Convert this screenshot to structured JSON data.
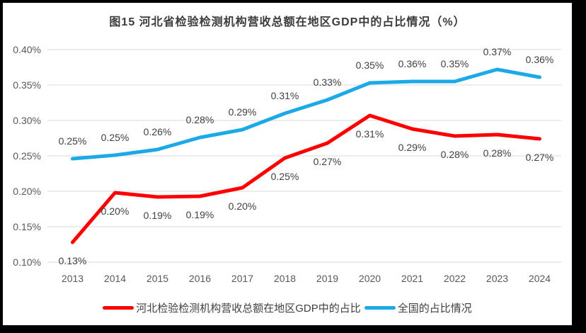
{
  "frame": {
    "border_color": "#000000",
    "background": "#FFFFFF"
  },
  "chart_data": {
    "type": "line",
    "title": "图15 河北省检验检测机构营收总额在地区GDP中的占比情况（%）",
    "categories": [
      "2013",
      "2014",
      "2015",
      "2016",
      "2017",
      "2018",
      "2019",
      "2020",
      "2021",
      "2022",
      "2023",
      "2024"
    ],
    "xlabel": "",
    "ylabel": "",
    "y_ticks": [
      "0.40%",
      "0.35%",
      "0.30%",
      "0.25%",
      "0.20%",
      "0.15%",
      "0.10%"
    ],
    "ylim_percent": [
      0.1,
      0.4
    ],
    "grid": true,
    "gridline_color": "#d9d9d9",
    "legend_position": "bottom",
    "series": [
      {
        "name": "河北检验检测机构营收总额在地区GDP中的占比",
        "color": "#fe0000",
        "label_side": "below",
        "values_percent": [
          0.13,
          0.2,
          0.19,
          0.19,
          0.2,
          0.25,
          0.27,
          0.31,
          0.29,
          0.28,
          0.28,
          0.27
        ],
        "point_labels": [
          "0.13%",
          "0.20%",
          "0.19%",
          "0.19%",
          "0.20%",
          "0.25%",
          "0.27%",
          "0.31%",
          "0.29%",
          "0.28%",
          "0.28%",
          "0.27%"
        ],
        "plot_values_percent": [
          0.128,
          0.198,
          0.192,
          0.193,
          0.205,
          0.247,
          0.268,
          0.307,
          0.288,
          0.278,
          0.28,
          0.274
        ]
      },
      {
        "name": "全国的占比情况",
        "color": "#1ba9e8",
        "label_side": "above",
        "values_percent": [
          0.25,
          0.25,
          0.26,
          0.28,
          0.29,
          0.31,
          0.33,
          0.35,
          0.36,
          0.35,
          0.37,
          0.36
        ],
        "point_labels": [
          "0.25%",
          "0.25%",
          "0.26%",
          "0.28%",
          "0.29%",
          "0.31%",
          "0.33%",
          "0.35%",
          "0.36%",
          "0.35%",
          "0.37%",
          "0.36%"
        ],
        "plot_values_percent": [
          0.246,
          0.251,
          0.259,
          0.276,
          0.287,
          0.31,
          0.329,
          0.353,
          0.355,
          0.355,
          0.372,
          0.361
        ]
      }
    ]
  }
}
